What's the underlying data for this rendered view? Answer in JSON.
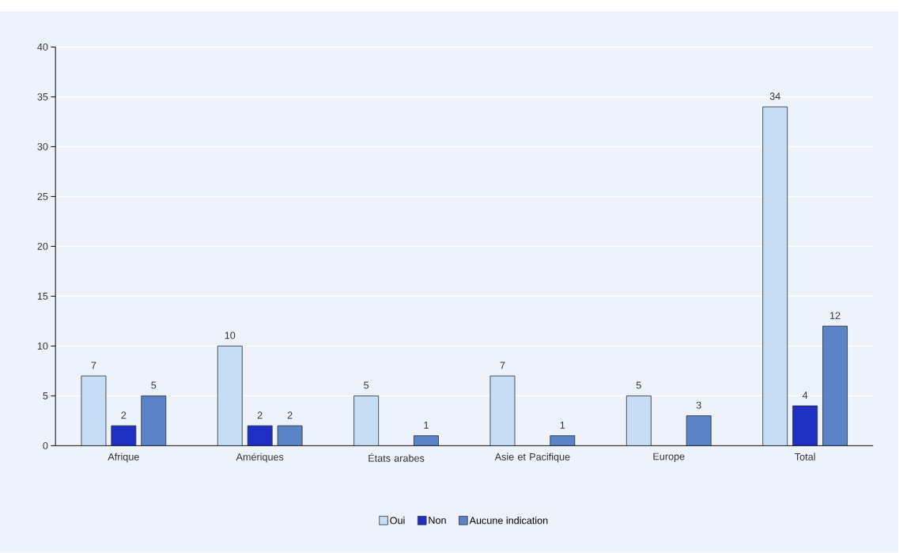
{
  "chart_data": {
    "type": "bar",
    "categories": [
      "Afrique",
      "Amériques",
      "États arabes",
      "Asie et Pacifique",
      "Europe",
      "Total"
    ],
    "series": [
      {
        "name": "Oui",
        "color": "#c5ddf5",
        "values": [
          7,
          10,
          5,
          7,
          5,
          34
        ]
      },
      {
        "name": "Non",
        "color": "#1f2fc4",
        "values": [
          2,
          2,
          null,
          null,
          null,
          4
        ]
      },
      {
        "name": "Aucune indication",
        "color": "#5b84c8",
        "values": [
          5,
          2,
          1,
          1,
          3,
          12
        ]
      }
    ],
    "ylim": [
      0,
      40
    ],
    "yticks": [
      0,
      5,
      10,
      15,
      20,
      25,
      30,
      35,
      40
    ],
    "grid": "y",
    "legend": "bottom",
    "data_labels": true
  }
}
